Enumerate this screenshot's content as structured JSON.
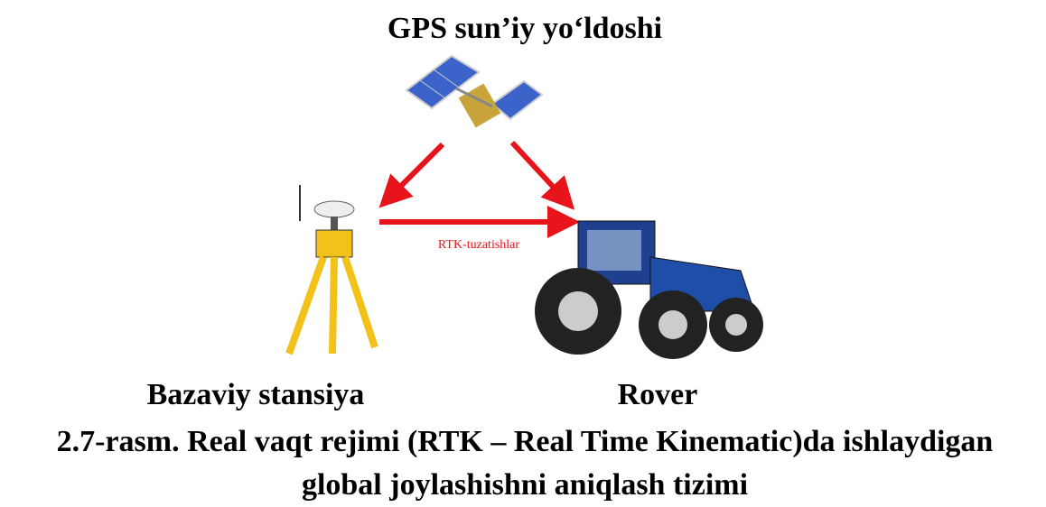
{
  "header": {
    "title": "GPS sun’iy yo‘ldoshi"
  },
  "nodes": [
    {
      "label": "Bazaviy stansiya"
    },
    {
      "label": "Rover"
    }
  ],
  "edges": [
    {
      "label": "RTK-tuzatishlar"
    }
  ],
  "caption": [
    "2.7-rasm. Real vaqt rejimi (RTK – Real Time Kinematic)da ishlaydigan",
    "global joylashishni aniqlash tizimi"
  ]
}
